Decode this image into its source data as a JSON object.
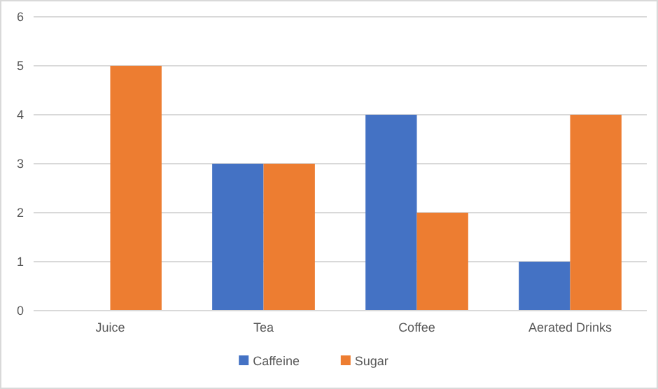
{
  "chart_data": {
    "type": "bar",
    "categories": [
      "Juice",
      "Tea",
      "Coffee",
      "Aerated Drinks"
    ],
    "series": [
      {
        "name": "Caffeine",
        "color": "#4472c4",
        "values": [
          0,
          3,
          4,
          1
        ]
      },
      {
        "name": "Sugar",
        "color": "#ed7d31",
        "values": [
          5,
          3,
          2,
          4
        ]
      }
    ],
    "ylim": [
      0,
      6
    ],
    "yticks": [
      0,
      1,
      2,
      3,
      4,
      5,
      6
    ],
    "grid": "y",
    "legend": "bottom"
  }
}
